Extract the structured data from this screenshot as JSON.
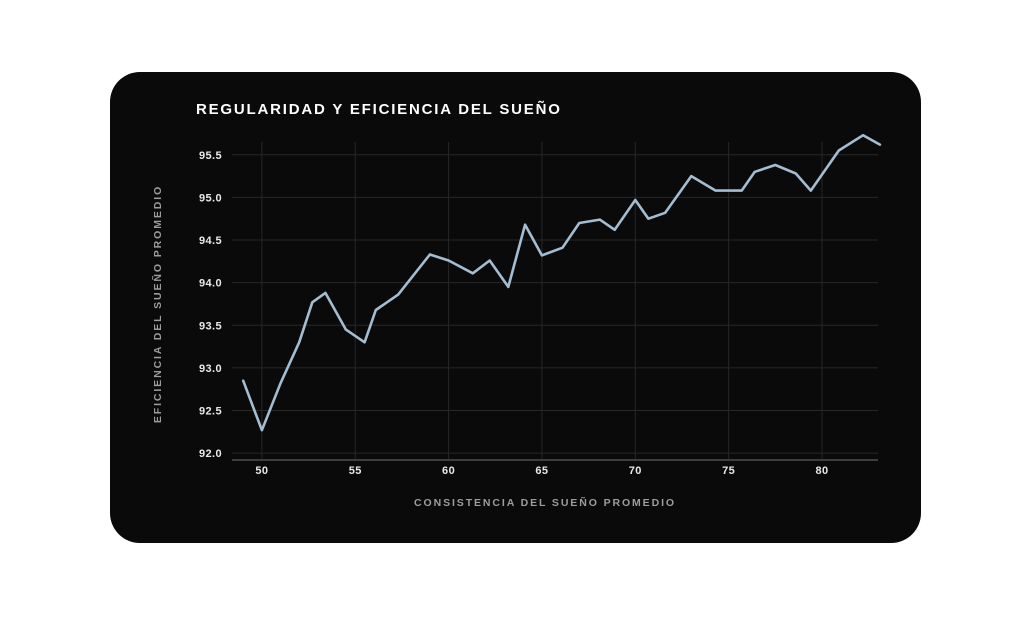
{
  "colors": {
    "page_background": "#ffffff",
    "card_background": "#0a0a0b",
    "title": "#ffffff",
    "line": "#a4bdd0",
    "grid": "#272727",
    "axis_line": "#3e3e3e",
    "tick_labels": "#e9e9e9",
    "axis_titles": "#9d9d9d"
  },
  "chart_data": {
    "type": "line",
    "title": "REGULARIDAD Y EFICIENCIA DEL SUEÑO",
    "xlabel": "CONSISTENCIA DEL SUEÑO PROMEDIO",
    "ylabel": "EFICIENCIA DEL SUEÑO PROMEDIO",
    "x": [
      49.0,
      50.0,
      51.0,
      52.0,
      52.7,
      53.4,
      54.5,
      55.5,
      56.1,
      57.3,
      59.0,
      60.0,
      61.3,
      62.2,
      63.2,
      64.1,
      65.0,
      66.1,
      67.0,
      68.1,
      68.9,
      70.0,
      70.7,
      71.6,
      73.0,
      74.3,
      75.7,
      76.4,
      77.5,
      78.6,
      79.4,
      80.9,
      82.2,
      83.1
    ],
    "y": [
      92.85,
      92.27,
      92.82,
      93.3,
      93.77,
      93.88,
      93.45,
      93.3,
      93.68,
      93.86,
      94.33,
      94.26,
      94.11,
      94.26,
      93.95,
      94.68,
      94.32,
      94.41,
      94.7,
      94.74,
      94.62,
      94.97,
      94.75,
      94.82,
      95.25,
      95.08,
      95.08,
      95.3,
      95.38,
      95.28,
      95.08,
      95.55,
      95.73,
      95.62
    ],
    "x_ticks": {
      "values": [
        50,
        55,
        60,
        65,
        70,
        75,
        80
      ],
      "labels": [
        "50",
        "55",
        "60",
        "65",
        "70",
        "75",
        "80"
      ]
    },
    "y_ticks": {
      "values": [
        92.0,
        92.5,
        93.0,
        93.5,
        94.0,
        94.5,
        95.0,
        95.5
      ],
      "labels": [
        "92.0",
        "92.5",
        "93.0",
        "93.5",
        "94.0",
        "94.5",
        "95.0",
        "95.5"
      ]
    },
    "xlim": [
      48.4,
      83.0
    ],
    "ylim": [
      91.92,
      95.65
    ],
    "grid": true,
    "legend": false
  }
}
